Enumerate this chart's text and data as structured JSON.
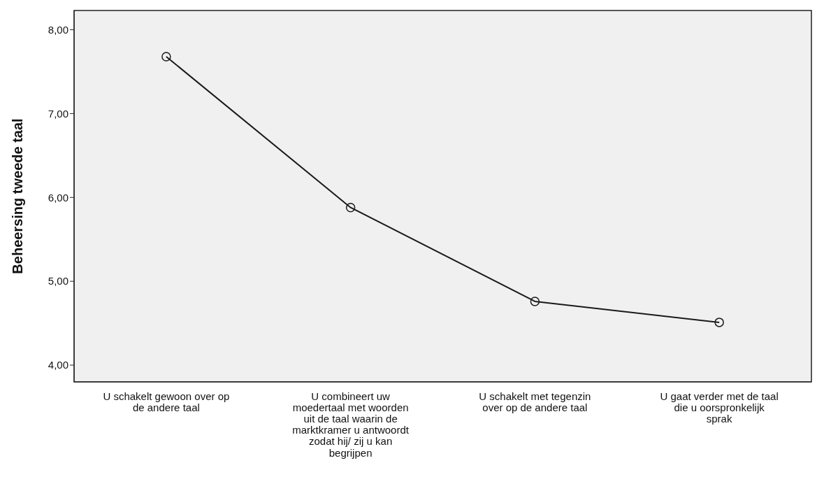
{
  "chart_data": {
    "type": "line",
    "ylabel": "Beheersing tweede taal",
    "categories": [
      "U schakelt gewoon over op de andere taal",
      "U combineert uw moedertaal met woorden uit de taal waarin de marktkramer u antwoordt zodat hij/ zij u kan begrijpen",
      "U schakelt met tegenzin over op de andere taal",
      "U gaat verder met de taal die u oorspronkelijk sprak"
    ],
    "series": [
      {
        "color": "#1a1a1a",
        "values": [
          7.68,
          5.88,
          4.76,
          4.51
        ]
      }
    ],
    "ylim": [
      3.8,
      8.23
    ],
    "yticks": [
      {
        "value": 4,
        "label": "4,00"
      },
      {
        "value": 5,
        "label": "5,00"
      },
      {
        "value": 6,
        "label": "6,00"
      },
      {
        "value": 7,
        "label": "7,00"
      },
      {
        "value": 8,
        "label": "8,00"
      }
    ],
    "grid": false,
    "legend": false,
    "marker": "circle",
    "line_style": "solid"
  }
}
